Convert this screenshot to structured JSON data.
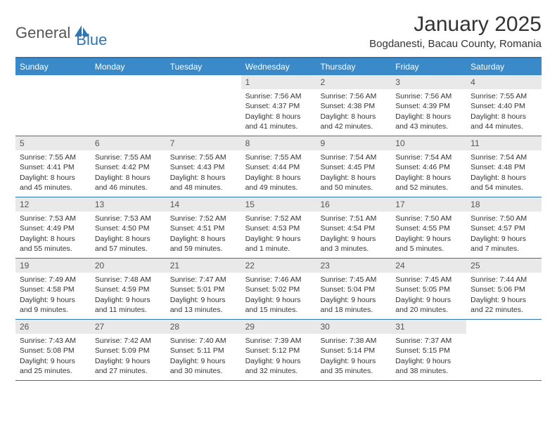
{
  "logo": {
    "text1": "General",
    "text2": "Blue",
    "accent_color": "#2e75b6"
  },
  "title": "January 2025",
  "location": "Bogdanesti, Bacau County, Romania",
  "colors": {
    "header_bar": "#3a8ac9",
    "border": "#2e75b6",
    "daynum_bg": "#e9e9e9",
    "text": "#333333",
    "weekday_text": "#ffffff"
  },
  "weekdays": [
    "Sunday",
    "Monday",
    "Tuesday",
    "Wednesday",
    "Thursday",
    "Friday",
    "Saturday"
  ],
  "weeks": [
    [
      {
        "empty": true
      },
      {
        "empty": true
      },
      {
        "empty": true
      },
      {
        "day": "1",
        "sunrise": "Sunrise: 7:56 AM",
        "sunset": "Sunset: 4:37 PM",
        "daylight1": "Daylight: 8 hours",
        "daylight2": "and 41 minutes."
      },
      {
        "day": "2",
        "sunrise": "Sunrise: 7:56 AM",
        "sunset": "Sunset: 4:38 PM",
        "daylight1": "Daylight: 8 hours",
        "daylight2": "and 42 minutes."
      },
      {
        "day": "3",
        "sunrise": "Sunrise: 7:56 AM",
        "sunset": "Sunset: 4:39 PM",
        "daylight1": "Daylight: 8 hours",
        "daylight2": "and 43 minutes."
      },
      {
        "day": "4",
        "sunrise": "Sunrise: 7:55 AM",
        "sunset": "Sunset: 4:40 PM",
        "daylight1": "Daylight: 8 hours",
        "daylight2": "and 44 minutes."
      }
    ],
    [
      {
        "day": "5",
        "sunrise": "Sunrise: 7:55 AM",
        "sunset": "Sunset: 4:41 PM",
        "daylight1": "Daylight: 8 hours",
        "daylight2": "and 45 minutes."
      },
      {
        "day": "6",
        "sunrise": "Sunrise: 7:55 AM",
        "sunset": "Sunset: 4:42 PM",
        "daylight1": "Daylight: 8 hours",
        "daylight2": "and 46 minutes."
      },
      {
        "day": "7",
        "sunrise": "Sunrise: 7:55 AM",
        "sunset": "Sunset: 4:43 PM",
        "daylight1": "Daylight: 8 hours",
        "daylight2": "and 48 minutes."
      },
      {
        "day": "8",
        "sunrise": "Sunrise: 7:55 AM",
        "sunset": "Sunset: 4:44 PM",
        "daylight1": "Daylight: 8 hours",
        "daylight2": "and 49 minutes."
      },
      {
        "day": "9",
        "sunrise": "Sunrise: 7:54 AM",
        "sunset": "Sunset: 4:45 PM",
        "daylight1": "Daylight: 8 hours",
        "daylight2": "and 50 minutes."
      },
      {
        "day": "10",
        "sunrise": "Sunrise: 7:54 AM",
        "sunset": "Sunset: 4:46 PM",
        "daylight1": "Daylight: 8 hours",
        "daylight2": "and 52 minutes."
      },
      {
        "day": "11",
        "sunrise": "Sunrise: 7:54 AM",
        "sunset": "Sunset: 4:48 PM",
        "daylight1": "Daylight: 8 hours",
        "daylight2": "and 54 minutes."
      }
    ],
    [
      {
        "day": "12",
        "sunrise": "Sunrise: 7:53 AM",
        "sunset": "Sunset: 4:49 PM",
        "daylight1": "Daylight: 8 hours",
        "daylight2": "and 55 minutes."
      },
      {
        "day": "13",
        "sunrise": "Sunrise: 7:53 AM",
        "sunset": "Sunset: 4:50 PM",
        "daylight1": "Daylight: 8 hours",
        "daylight2": "and 57 minutes."
      },
      {
        "day": "14",
        "sunrise": "Sunrise: 7:52 AM",
        "sunset": "Sunset: 4:51 PM",
        "daylight1": "Daylight: 8 hours",
        "daylight2": "and 59 minutes."
      },
      {
        "day": "15",
        "sunrise": "Sunrise: 7:52 AM",
        "sunset": "Sunset: 4:53 PM",
        "daylight1": "Daylight: 9 hours",
        "daylight2": "and 1 minute."
      },
      {
        "day": "16",
        "sunrise": "Sunrise: 7:51 AM",
        "sunset": "Sunset: 4:54 PM",
        "daylight1": "Daylight: 9 hours",
        "daylight2": "and 3 minutes."
      },
      {
        "day": "17",
        "sunrise": "Sunrise: 7:50 AM",
        "sunset": "Sunset: 4:55 PM",
        "daylight1": "Daylight: 9 hours",
        "daylight2": "and 5 minutes."
      },
      {
        "day": "18",
        "sunrise": "Sunrise: 7:50 AM",
        "sunset": "Sunset: 4:57 PM",
        "daylight1": "Daylight: 9 hours",
        "daylight2": "and 7 minutes."
      }
    ],
    [
      {
        "day": "19",
        "sunrise": "Sunrise: 7:49 AM",
        "sunset": "Sunset: 4:58 PM",
        "daylight1": "Daylight: 9 hours",
        "daylight2": "and 9 minutes."
      },
      {
        "day": "20",
        "sunrise": "Sunrise: 7:48 AM",
        "sunset": "Sunset: 4:59 PM",
        "daylight1": "Daylight: 9 hours",
        "daylight2": "and 11 minutes."
      },
      {
        "day": "21",
        "sunrise": "Sunrise: 7:47 AM",
        "sunset": "Sunset: 5:01 PM",
        "daylight1": "Daylight: 9 hours",
        "daylight2": "and 13 minutes."
      },
      {
        "day": "22",
        "sunrise": "Sunrise: 7:46 AM",
        "sunset": "Sunset: 5:02 PM",
        "daylight1": "Daylight: 9 hours",
        "daylight2": "and 15 minutes."
      },
      {
        "day": "23",
        "sunrise": "Sunrise: 7:45 AM",
        "sunset": "Sunset: 5:04 PM",
        "daylight1": "Daylight: 9 hours",
        "daylight2": "and 18 minutes."
      },
      {
        "day": "24",
        "sunrise": "Sunrise: 7:45 AM",
        "sunset": "Sunset: 5:05 PM",
        "daylight1": "Daylight: 9 hours",
        "daylight2": "and 20 minutes."
      },
      {
        "day": "25",
        "sunrise": "Sunrise: 7:44 AM",
        "sunset": "Sunset: 5:06 PM",
        "daylight1": "Daylight: 9 hours",
        "daylight2": "and 22 minutes."
      }
    ],
    [
      {
        "day": "26",
        "sunrise": "Sunrise: 7:43 AM",
        "sunset": "Sunset: 5:08 PM",
        "daylight1": "Daylight: 9 hours",
        "daylight2": "and 25 minutes."
      },
      {
        "day": "27",
        "sunrise": "Sunrise: 7:42 AM",
        "sunset": "Sunset: 5:09 PM",
        "daylight1": "Daylight: 9 hours",
        "daylight2": "and 27 minutes."
      },
      {
        "day": "28",
        "sunrise": "Sunrise: 7:40 AM",
        "sunset": "Sunset: 5:11 PM",
        "daylight1": "Daylight: 9 hours",
        "daylight2": "and 30 minutes."
      },
      {
        "day": "29",
        "sunrise": "Sunrise: 7:39 AM",
        "sunset": "Sunset: 5:12 PM",
        "daylight1": "Daylight: 9 hours",
        "daylight2": "and 32 minutes."
      },
      {
        "day": "30",
        "sunrise": "Sunrise: 7:38 AM",
        "sunset": "Sunset: 5:14 PM",
        "daylight1": "Daylight: 9 hours",
        "daylight2": "and 35 minutes."
      },
      {
        "day": "31",
        "sunrise": "Sunrise: 7:37 AM",
        "sunset": "Sunset: 5:15 PM",
        "daylight1": "Daylight: 9 hours",
        "daylight2": "and 38 minutes."
      },
      {
        "empty": true
      }
    ]
  ]
}
